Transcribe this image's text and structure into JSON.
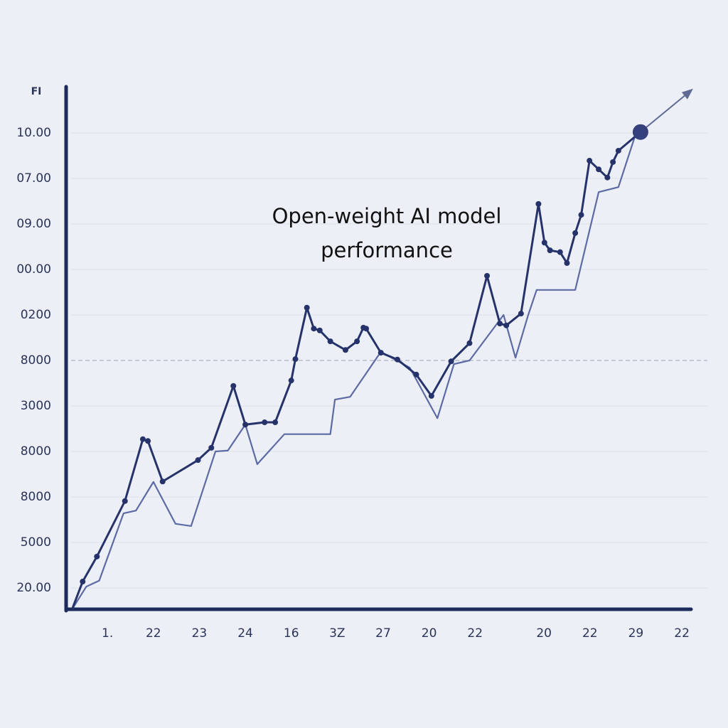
{
  "chart_data": {
    "type": "line",
    "title": "Open-weight AI model performance",
    "y_label": "FI",
    "xlim": [
      0.1,
      13.7
    ],
    "xticks": [
      {
        "value": 1,
        "label": "1."
      },
      {
        "value": 2,
        "label": "22"
      },
      {
        "value": 3,
        "label": "23"
      },
      {
        "value": 4,
        "label": "24"
      },
      {
        "value": 5,
        "label": "16"
      },
      {
        "value": 6,
        "label": "3Z"
      },
      {
        "value": 7,
        "label": "27"
      },
      {
        "value": 8,
        "label": "20"
      },
      {
        "value": 9,
        "label": "22"
      },
      {
        "value": 10.5,
        "label": "20"
      },
      {
        "value": 11.5,
        "label": "22"
      },
      {
        "value": 12.5,
        "label": "29"
      },
      {
        "value": 13.5,
        "label": "22"
      }
    ],
    "ylim": [
      0.5,
      12
    ],
    "yticks": [
      {
        "value": 1,
        "label": "20.00"
      },
      {
        "value": 2,
        "label": "5000"
      },
      {
        "value": 3,
        "label": "8000"
      },
      {
        "value": 4,
        "label": "8000"
      },
      {
        "value": 5,
        "label": "3000"
      },
      {
        "value": 6,
        "label": "8000"
      },
      {
        "value": 7,
        "label": "0200"
      },
      {
        "value": 8,
        "label": "00.00"
      },
      {
        "value": 9,
        "label": "09.00"
      },
      {
        "value": 10,
        "label": "07.00"
      },
      {
        "value": 11,
        "label": "10.00"
      }
    ],
    "reference_y": 6,
    "grid": true,
    "series": [
      {
        "color": "#26336a",
        "markers": true,
        "x": [
          0.23,
          0.46,
          0.77,
          1.38,
          1.77,
          1.88,
          2.2,
          2.97,
          3.26,
          3.74,
          4.0,
          4.42,
          4.65,
          5.0,
          5.09,
          5.34,
          5.49,
          5.62,
          5.85,
          6.18,
          6.43,
          6.57,
          6.63,
          6.95,
          7.31,
          7.72,
          8.05,
          8.48,
          8.88,
          9.26,
          9.54,
          9.68,
          10.0,
          10.38,
          10.51,
          10.63,
          10.85,
          11.0,
          11.18,
          11.31,
          11.49,
          11.69,
          11.88,
          12.0,
          12.12,
          12.6
        ],
        "values": [
          0.53,
          1.14,
          1.69,
          2.91,
          4.27,
          4.23,
          3.34,
          3.81,
          4.08,
          5.44,
          4.59,
          4.64,
          4.64,
          5.56,
          6.03,
          7.16,
          6.7,
          6.66,
          6.42,
          6.23,
          6.42,
          6.72,
          6.7,
          6.17,
          6.02,
          5.69,
          5.22,
          5.98,
          6.38,
          7.86,
          6.81,
          6.77,
          7.03,
          9.44,
          8.59,
          8.42,
          8.38,
          8.14,
          8.8,
          9.2,
          10.39,
          10.2,
          10.02,
          10.36,
          10.61,
          11.02
        ]
      },
      {
        "color": "#5d6aa3",
        "markers": false,
        "x": [
          0.23,
          0.54,
          0.82,
          1.35,
          1.62,
          2.0,
          2.48,
          2.82,
          3.35,
          3.62,
          4.0,
          4.26,
          4.85,
          5.85,
          5.95,
          6.28,
          6.95,
          7.58,
          8.18,
          8.54,
          8.88,
          9.62,
          9.88,
          10.15,
          10.34,
          11.18,
          11.69,
          12.12,
          12.51
        ],
        "values": [
          0.53,
          1.03,
          1.16,
          2.64,
          2.7,
          3.33,
          2.41,
          2.36,
          4.0,
          4.02,
          4.59,
          3.72,
          4.38,
          4.38,
          5.14,
          5.2,
          6.19,
          5.84,
          4.73,
          5.92,
          6.0,
          7.0,
          6.06,
          6.98,
          7.55,
          7.55,
          9.7,
          9.81,
          11.02
        ]
      }
    ]
  }
}
